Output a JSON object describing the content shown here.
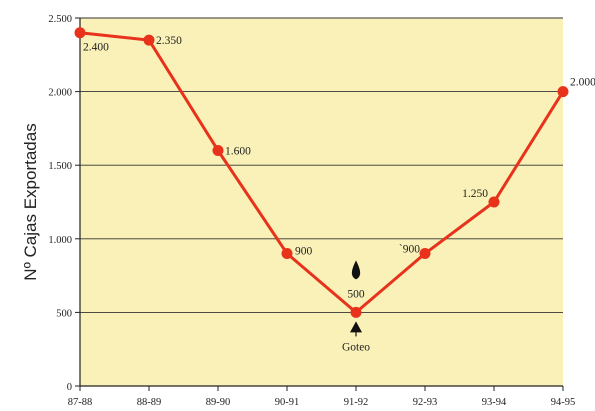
{
  "chart_data": {
    "type": "line",
    "title": "",
    "xlabel": "",
    "ylabel": "Nº Cajas Exportadas",
    "categories": [
      "87-88",
      "88-89",
      "89-90",
      "90-91",
      "91-92",
      "92-93",
      "93-94",
      "94-95"
    ],
    "series": [
      {
        "values": [
          2400,
          2350,
          1600,
          900,
          500,
          900,
          1250,
          2000
        ],
        "labels": [
          "2.400",
          "2.350",
          "1.600",
          "900",
          "500",
          "`900",
          "1.250",
          "2.000"
        ],
        "color": "#e8321c"
      }
    ],
    "ylim": [
      0,
      2500
    ],
    "yticks": [
      0,
      500,
      1000,
      1500,
      2000,
      2500
    ],
    "ytick_labels": [
      "0",
      "500",
      "1.000",
      "1.500",
      "2.000",
      "2.500"
    ],
    "grid": true,
    "legend": "none",
    "annotations": [
      {
        "text": "Goteo",
        "category": "91-92",
        "icon": "drop-icon"
      }
    ],
    "colors": {
      "background": "#f9f1b8",
      "line": "#e8321c",
      "marker": "#e8321c",
      "grid": "#333333"
    }
  }
}
